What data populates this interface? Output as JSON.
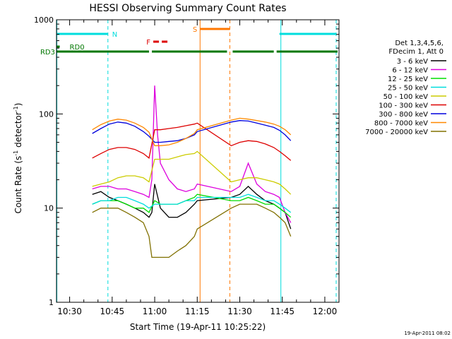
{
  "chart_data": {
    "type": "line",
    "title": "HESSI Observing Summary Count Rates",
    "xlabel": "Start Time (19-Apr-11 10:25:22)",
    "ylabel_prefix": "Count Rate (s",
    "ylabel_sup1": "-1",
    "ylabel_mid": " detector",
    "ylabel_sup2": "-1",
    "ylabel_suffix": ")",
    "yscale": "log",
    "ylim": [
      1,
      1000
    ],
    "xlim": [
      "10:25:22",
      "12:05:00"
    ],
    "x_ticks": [
      "10:30",
      "10:45",
      "11:00",
      "11:15",
      "11:30",
      "11:45",
      "12:00"
    ],
    "y_ticks": [
      "1",
      "10",
      "100",
      "1000"
    ],
    "footer_date": "19-Apr-2011 08:02",
    "legend_title_1": "Det 1,3,4,5,6,",
    "legend_title_2": "FDecim 1, Att 0",
    "legend_position": "right",
    "colors": {
      "frame": "#000000",
      "night": "#00dddd",
      "saa": "#ff7700",
      "radiation": "#007700",
      "flare": "#dd0000"
    },
    "state_bars": [
      {
        "label": "N",
        "color": "#00dddd",
        "segments": [
          [
            "10:25:22",
            "10:43:30"
          ],
          [
            "11:44:00",
            "12:04:00"
          ]
        ]
      },
      {
        "label": "S",
        "color": "#ff7700",
        "segments": [
          [
            "11:16:00",
            "11:26:30"
          ]
        ]
      },
      {
        "label": "F",
        "color": "#dd0000",
        "segments": [
          [
            "10:59:30",
            "11:01:30"
          ],
          [
            "11:02:30",
            "11:04:30"
          ]
        ]
      },
      {
        "label": "RD0",
        "color": "#007700",
        "segments": [
          [
            "10:25:22",
            "10:26:30"
          ]
        ]
      },
      {
        "label": "RD3",
        "color": "#007700",
        "segments": [
          [
            "10:25:22",
            "10:58:00"
          ],
          [
            "10:59:00",
            "11:25:30"
          ],
          [
            "11:27:30",
            "11:42:00"
          ],
          [
            "11:43:00",
            "12:04:30"
          ]
        ]
      }
    ],
    "night_lines_solid": [
      "10:25:30",
      "11:44:30"
    ],
    "night_lines_dashed": [
      "10:43:30",
      "12:04:00"
    ],
    "saa_lines_solid": [
      "11:16:00"
    ],
    "saa_lines_dashed": [
      "11:26:30"
    ],
    "series": [
      {
        "name": "3 - 6 keV",
        "color": "#000000",
        "x": [
          "10:38",
          "10:41",
          "10:44",
          "10:47",
          "10:50",
          "10:53",
          "10:56",
          "10:58",
          "10:59",
          "11:00",
          "11:02",
          "11:05",
          "11:08",
          "11:11",
          "11:14",
          "11:15",
          "11:27",
          "11:30",
          "11:33",
          "11:36",
          "11:39",
          "11:42",
          "11:44",
          "11:46",
          "11:48"
        ],
        "y": [
          14,
          15,
          13,
          12,
          11,
          10,
          9,
          8,
          9,
          18,
          10,
          8,
          8,
          9,
          11,
          12,
          13,
          14,
          17,
          14,
          12,
          11,
          10,
          9,
          6
        ]
      },
      {
        "name": "6 - 12 keV",
        "color": "#dd00dd",
        "x": [
          "10:38",
          "10:41",
          "10:44",
          "10:47",
          "10:50",
          "10:53",
          "10:56",
          "10:58",
          "10:59",
          "11:00",
          "11:01",
          "11:02",
          "11:05",
          "11:08",
          "11:11",
          "11:14",
          "11:15",
          "11:27",
          "11:30",
          "11:33",
          "11:36",
          "11:39",
          "11:42",
          "11:44",
          "11:46",
          "11:48"
        ],
        "y": [
          16,
          17,
          17,
          16,
          16,
          15,
          14,
          13,
          20,
          200,
          60,
          30,
          20,
          16,
          15,
          16,
          18,
          15,
          17,
          30,
          18,
          15,
          14,
          13,
          9,
          7
        ]
      },
      {
        "name": "12 - 25 keV",
        "color": "#00dd00",
        "x": [
          "10:38",
          "10:41",
          "10:44",
          "10:47",
          "10:50",
          "10:53",
          "10:56",
          "10:58",
          "11:00",
          "11:02",
          "11:05",
          "11:08",
          "11:11",
          "11:14",
          "11:15",
          "11:27",
          "11:30",
          "11:33",
          "11:36",
          "11:39",
          "11:42",
          "11:44",
          "11:46",
          "11:48"
        ],
        "y": [
          11,
          12,
          12,
          12,
          11,
          10,
          10,
          9,
          12,
          11,
          11,
          11,
          12,
          13,
          14,
          12,
          12,
          13,
          12,
          11,
          11,
          10,
          9,
          8
        ]
      },
      {
        "name": "25 - 50 keV",
        "color": "#00dddd",
        "x": [
          "10:38",
          "10:41",
          "10:44",
          "10:47",
          "10:50",
          "10:53",
          "10:56",
          "10:58",
          "11:00",
          "11:02",
          "11:05",
          "11:08",
          "11:11",
          "11:14",
          "11:15",
          "11:27",
          "11:30",
          "11:33",
          "11:36",
          "11:39",
          "11:42",
          "11:44",
          "11:46",
          "11:48"
        ],
        "y": [
          11,
          12,
          12,
          13,
          13,
          12,
          11,
          10,
          11,
          11,
          11,
          11,
          12,
          12,
          13,
          13,
          13,
          14,
          13,
          12,
          12,
          11,
          10,
          9
        ]
      },
      {
        "name": "50 - 100 keV",
        "color": "#cccc00",
        "x": [
          "10:38",
          "10:41",
          "10:44",
          "10:47",
          "10:50",
          "10:53",
          "10:56",
          "10:58",
          "11:00",
          "11:02",
          "11:05",
          "11:08",
          "11:11",
          "11:14",
          "11:15",
          "11:27",
          "11:30",
          "11:33",
          "11:36",
          "11:39",
          "11:42",
          "11:44",
          "11:46",
          "11:48"
        ],
        "y": [
          17,
          18,
          19,
          21,
          22,
          22,
          21,
          19,
          33,
          33,
          33,
          35,
          37,
          38,
          40,
          19,
          20,
          21,
          21,
          20,
          19,
          18,
          16,
          14
        ]
      },
      {
        "name": "100 - 300 keV",
        "color": "#dd0000",
        "x": [
          "10:38",
          "10:41",
          "10:44",
          "10:47",
          "10:50",
          "10:53",
          "10:56",
          "10:58",
          "11:00",
          "11:02",
          "11:05",
          "11:08",
          "11:11",
          "11:14",
          "11:15",
          "11:27",
          "11:30",
          "11:33",
          "11:36",
          "11:39",
          "11:42",
          "11:44",
          "11:46",
          "11:48"
        ],
        "y": [
          34,
          38,
          42,
          44,
          44,
          42,
          38,
          34,
          68,
          68,
          70,
          72,
          75,
          78,
          80,
          46,
          50,
          52,
          51,
          48,
          44,
          40,
          36,
          32
        ]
      },
      {
        "name": "300 - 800 keV",
        "color": "#0000dd",
        "x": [
          "10:38",
          "10:41",
          "10:44",
          "10:47",
          "10:50",
          "10:53",
          "10:56",
          "10:58",
          "11:00",
          "11:02",
          "11:05",
          "11:08",
          "11:11",
          "11:14",
          "11:15",
          "11:27",
          "11:30",
          "11:33",
          "11:36",
          "11:39",
          "11:42",
          "11:44",
          "11:46",
          "11:48"
        ],
        "y": [
          62,
          70,
          78,
          82,
          80,
          74,
          65,
          58,
          50,
          50,
          51,
          52,
          55,
          60,
          65,
          82,
          85,
          84,
          80,
          76,
          72,
          67,
          60,
          52
        ]
      },
      {
        "name": "800 - 7000 keV",
        "color": "#ff8800",
        "x": [
          "10:38",
          "10:41",
          "10:44",
          "10:47",
          "10:50",
          "10:53",
          "10:56",
          "10:58",
          "11:00",
          "11:02",
          "11:05",
          "11:08",
          "11:11",
          "11:14",
          "11:15",
          "11:27",
          "11:30",
          "11:33",
          "11:36",
          "11:39",
          "11:42",
          "11:44",
          "11:46",
          "11:48"
        ],
        "y": [
          68,
          77,
          84,
          88,
          86,
          80,
          72,
          64,
          46,
          46,
          47,
          50,
          55,
          62,
          68,
          86,
          90,
          88,
          85,
          82,
          78,
          74,
          68,
          60
        ]
      },
      {
        "name": "7000 - 20000 keV",
        "color": "#807000",
        "x": [
          "10:38",
          "10:41",
          "10:44",
          "10:47",
          "10:50",
          "10:53",
          "10:56",
          "10:58",
          "10:59",
          "11:02",
          "11:05",
          "11:08",
          "11:11",
          "11:14",
          "11:15",
          "11:27",
          "11:30",
          "11:33",
          "11:36",
          "11:39",
          "11:42",
          "11:44",
          "11:46",
          "11:48"
        ],
        "y": [
          9,
          10,
          10,
          10,
          9,
          8,
          7,
          5,
          3,
          3,
          3,
          3.5,
          4,
          5,
          6,
          10,
          11,
          11,
          11,
          10,
          9,
          8,
          7,
          5
        ]
      }
    ]
  }
}
